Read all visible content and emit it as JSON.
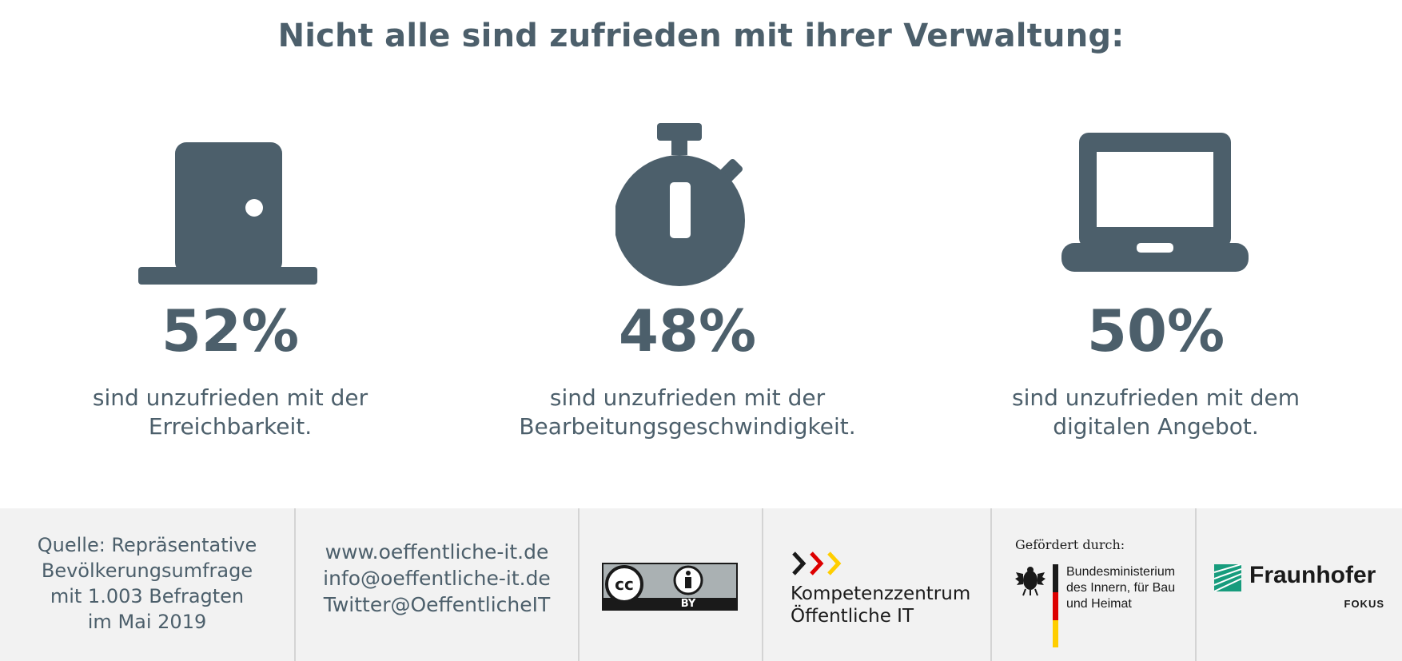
{
  "title": "Nicht alle sind zufrieden mit ihrer Verwaltung:",
  "stats": [
    {
      "icon": "door-icon",
      "percent": "52%",
      "value": 52,
      "line1": "sind unzufrieden mit der",
      "line2": "Erreichbarkeit."
    },
    {
      "icon": "stopwatch-icon",
      "percent": "48%",
      "value": 48,
      "line1": "sind unzufrieden mit der",
      "line2": "Bearbeitungsgeschwindigkeit."
    },
    {
      "icon": "laptop-icon",
      "percent": "50%",
      "value": 50,
      "line1": "sind unzufrieden mit dem",
      "line2": "digitalen Angebot."
    }
  ],
  "footer": {
    "source_lines": [
      "Quelle: Repräsentative",
      "Bevölkerungsumfrage",
      "mit 1.003 Befragten",
      "im Mai 2019"
    ],
    "contact_lines": [
      "www.oeffentliche-it.de",
      "info@oeffentliche-it.de",
      "Twitter@OeffentlicheIT"
    ],
    "license": {
      "cc": "cc",
      "by": "BY"
    },
    "kompetenz": {
      "line1": "Kompetenzzentrum",
      "line2": "Öffentliche IT"
    },
    "funding": {
      "label": "Gefördert durch:",
      "ministry_lines": [
        "Bundesministerium",
        "des Innern, für Bau",
        "und Heimat"
      ]
    },
    "fraunhofer": {
      "name": "Fraunhofer",
      "sub": "FOKUS"
    }
  },
  "colors": {
    "primary": "#4c5f6b",
    "footer_bg": "#f2f2f2",
    "fraunhofer_green": "#179c7d",
    "red": "#dd0000",
    "gold": "#ffce00"
  }
}
